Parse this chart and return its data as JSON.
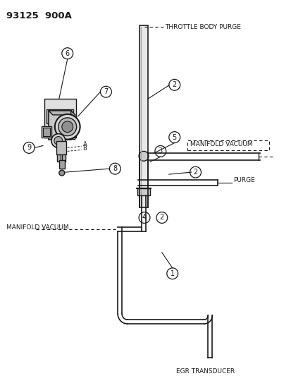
{
  "title": "93125  900A",
  "bg_color": "#ffffff",
  "line_color": "#1a1a1a",
  "text_color": "#1a1a1a",
  "labels": {
    "throttle_body_purge": "THROTTLE BODY PURGE",
    "manifold_vacuum_top": "MANIFOLD VACUUM",
    "purge": "PURGE",
    "manifold_vacuum_bottom": "MANIFOLD VACUUM",
    "egr_transducer": "EGR TRANSDUCER",
    "point_A": "A",
    "point_B": "B"
  }
}
